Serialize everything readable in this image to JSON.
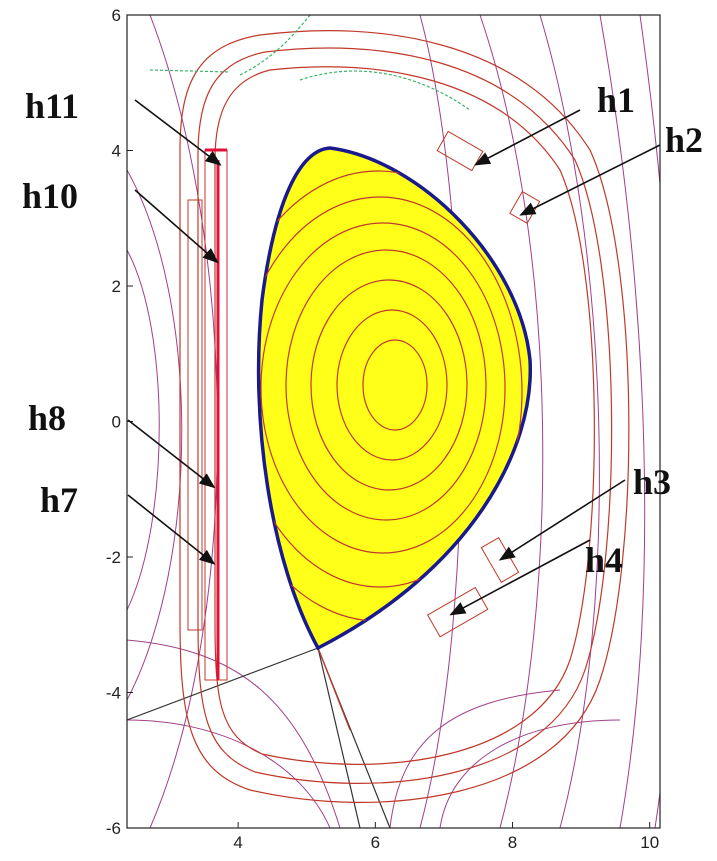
{
  "chart_data": {
    "type": "equilibrium",
    "xlim": [
      2.38,
      10.15
    ],
    "ylim": [
      -6,
      6
    ],
    "xticks": [
      4,
      6,
      8,
      10
    ],
    "yticks": [
      -6,
      -4,
      -2,
      0,
      2,
      4,
      6
    ],
    "annotations": [
      {
        "text": "h11",
        "xy": [
          3.74,
          3.79
        ]
      },
      {
        "text": "h10",
        "xy": [
          3.7,
          2.35
        ]
      },
      {
        "text": "h8",
        "xy": [
          3.65,
          -0.97
        ]
      },
      {
        "text": "h7",
        "xy": [
          3.65,
          -2.1
        ]
      },
      {
        "text": "h1",
        "xy": [
          7.46,
          3.79
        ]
      },
      {
        "text": "h2",
        "xy": [
          8.12,
          3.05
        ]
      },
      {
        "text": "h3",
        "xy": [
          7.82,
          -2.04
        ]
      },
      {
        "text": "h4",
        "xy": [
          7.1,
          -2.85
        ]
      }
    ]
  }
}
